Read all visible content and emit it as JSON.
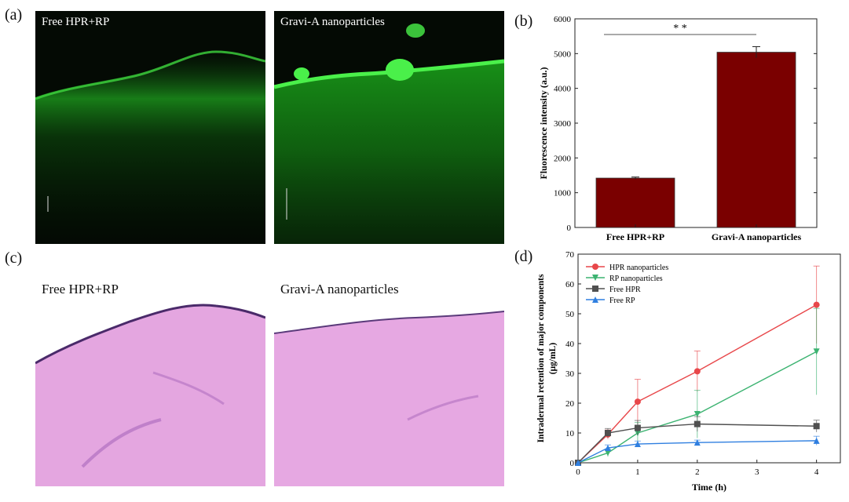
{
  "panels": {
    "a": {
      "letter": "(a)",
      "left_label": "Free HPR+RP",
      "right_label": "Gravi-A nanoparticles"
    },
    "b": {
      "letter": "(b)"
    },
    "c": {
      "letter": "(c)",
      "left_label": "Free HPR+RP",
      "right_label": "Gravi-A nanoparticles"
    },
    "d": {
      "letter": "(d)"
    }
  },
  "colors": {
    "bar_fill": "#7a0000",
    "hpr_nano": "#e8474a",
    "rp_nano": "#3cb371",
    "free_hpr": "#505050",
    "free_rp": "#2f7fe0",
    "fluor_green": "#35e335",
    "he_pink": "#e2a2de"
  },
  "chart_data": [
    {
      "type": "bar",
      "categories": [
        "Free HPR+RP",
        "Gravi-A nanoparticles"
      ],
      "values": [
        1420,
        5040
      ],
      "errors": [
        30,
        160
      ],
      "ylabel": "Fluorescence intensity (a.u.)",
      "xlabel": "",
      "ylim": [
        0,
        6000
      ],
      "yticks": [
        0,
        1000,
        2000,
        3000,
        4000,
        5000,
        6000
      ],
      "significance": "* *"
    },
    {
      "type": "line",
      "x": [
        0,
        0.5,
        1,
        2,
        4
      ],
      "xlabel": "Time (h)",
      "ylabel_line1": "Intradermal retention of major components",
      "ylabel_line2": "(μg/mL)",
      "xlim": [
        0,
        4.4
      ],
      "ylim": [
        0,
        70
      ],
      "xticks": [
        0,
        1,
        2,
        3,
        4
      ],
      "yticks": [
        0,
        10,
        20,
        30,
        40,
        50,
        60,
        70
      ],
      "legend_position": "top-left",
      "series": [
        {
          "name": "HPR nanoparticles",
          "marker": "circle",
          "values": [
            0,
            9.5,
            20.5,
            30.7,
            53
          ],
          "errors": [
            0,
            1.5,
            7.5,
            6.8,
            13
          ]
        },
        {
          "name": "RP nanoparticles",
          "marker": "triangle-down",
          "values": [
            0,
            3.3,
            10,
            16.3,
            37.3
          ],
          "errors": [
            0,
            1.2,
            3.5,
            8,
            14.5
          ]
        },
        {
          "name": "Free HPR",
          "marker": "square",
          "values": [
            0,
            10,
            11.7,
            13,
            12.3
          ],
          "errors": [
            0,
            1.5,
            2.5,
            2.5,
            2
          ]
        },
        {
          "name": "Free RP",
          "marker": "triangle-up",
          "values": [
            0,
            5,
            6.3,
            6.8,
            7.4
          ],
          "errors": [
            0,
            1,
            1,
            0.8,
            1.5
          ]
        }
      ]
    }
  ]
}
